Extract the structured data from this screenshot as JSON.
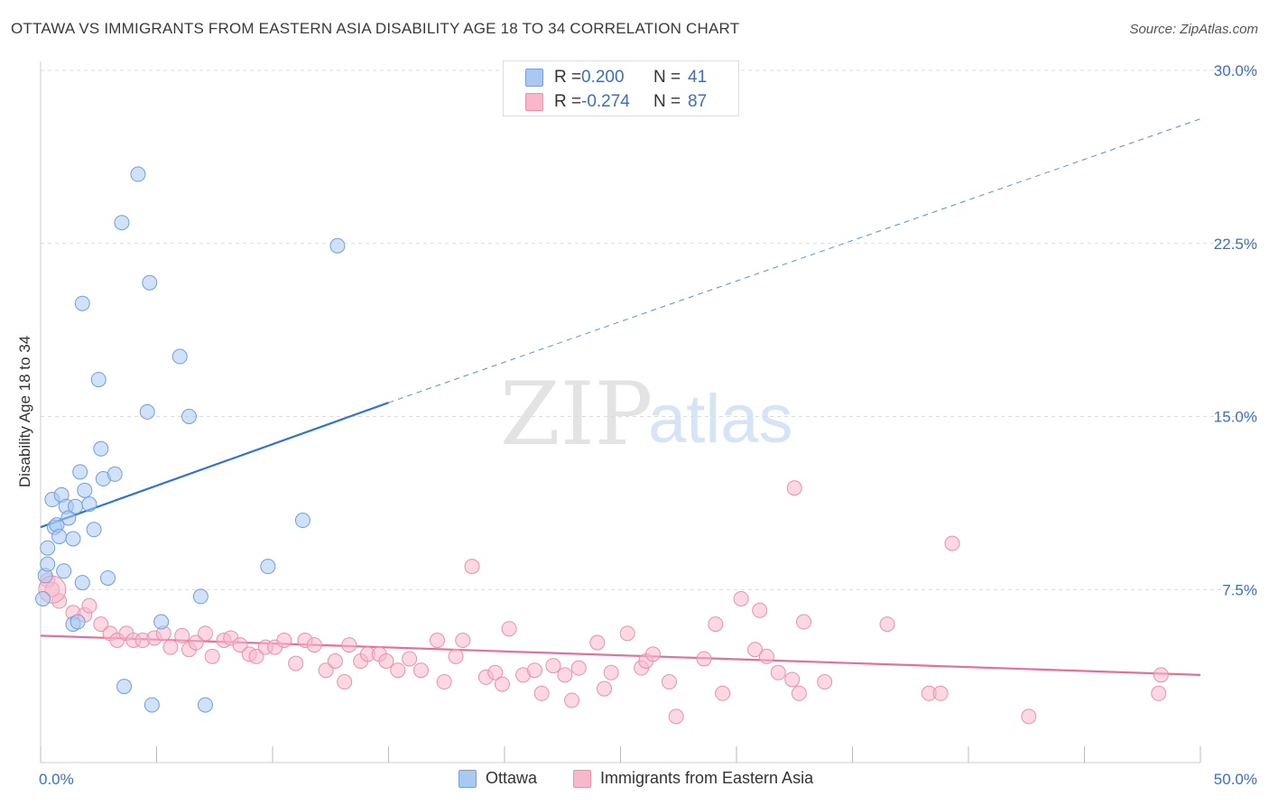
{
  "title": "OTTAWA VS IMMIGRANTS FROM EASTERN ASIA DISABILITY AGE 18 TO 34 CORRELATION CHART",
  "source": "Source: ZipAtlas.com",
  "watermark": {
    "zip": "ZIP",
    "atlas": "atlas"
  },
  "colors": {
    "ottawa_fill": "#a9c8f2",
    "ottawa_stroke": "#6f9fe0",
    "ottawa_line": "#2f74d0",
    "immigrants_fill": "#f7b8cb",
    "immigrants_stroke": "#ee8fac",
    "immigrants_line": "#e56f9a",
    "axis_label": "#3a6fc4",
    "grid": "#dcdcdc"
  },
  "stats": [
    {
      "r_label": "R =",
      "r_value": "0.200",
      "n_label": "N =",
      "n_value": "41",
      "series": "ottawa"
    },
    {
      "r_label": "R =",
      "r_value": "-0.274",
      "n_label": "N =",
      "n_value": "87",
      "series": "immigrants"
    }
  ],
  "legend": [
    {
      "label": "Ottawa",
      "series": "ottawa"
    },
    {
      "label": "Immigrants from Eastern Asia",
      "series": "immigrants"
    }
  ],
  "chart_data": {
    "type": "scatter",
    "title": "OTTAWA VS IMMIGRANTS FROM EASTERN ASIA DISABILITY AGE 18 TO 34 CORRELATION CHART",
    "xlabel": "",
    "ylabel": "Disability Age 18 to 34",
    "xlim": [
      0,
      50
    ],
    "ylim": [
      0,
      30
    ],
    "x_tick_labels": [
      "0.0%",
      "50.0%"
    ],
    "y_ticks": [
      7.5,
      15.0,
      22.5,
      30.0
    ],
    "y_tick_labels": [
      "7.5%",
      "15.0%",
      "22.5%",
      "30.0%"
    ],
    "grid": "horizontal dashed",
    "legend_position": "bottom",
    "series": [
      {
        "name": "Ottawa",
        "key": "ottawa",
        "r": 0.2,
        "n": 41,
        "trend": {
          "x": [
            0,
            15
          ],
          "y": [
            10.2,
            15.6
          ],
          "dashed_extension": {
            "x": [
              15,
              50
            ],
            "y": [
              15.6,
              27.9
            ]
          }
        },
        "points": [
          [
            0.1,
            7.1
          ],
          [
            0.2,
            8.1
          ],
          [
            0.3,
            9.3
          ],
          [
            0.3,
            8.6
          ],
          [
            0.5,
            11.4
          ],
          [
            0.6,
            10.2
          ],
          [
            0.7,
            10.3
          ],
          [
            0.8,
            9.8
          ],
          [
            0.9,
            11.6
          ],
          [
            1.0,
            8.3
          ],
          [
            1.1,
            11.1
          ],
          [
            1.2,
            10.6
          ],
          [
            1.4,
            9.7
          ],
          [
            1.4,
            6.0
          ],
          [
            1.5,
            11.1
          ],
          [
            1.6,
            6.1
          ],
          [
            1.7,
            12.6
          ],
          [
            1.8,
            19.9
          ],
          [
            1.8,
            7.8
          ],
          [
            1.9,
            11.8
          ],
          [
            2.1,
            11.2
          ],
          [
            2.3,
            10.1
          ],
          [
            2.5,
            16.6
          ],
          [
            2.6,
            13.6
          ],
          [
            2.7,
            12.3
          ],
          [
            2.9,
            8.0
          ],
          [
            3.2,
            12.5
          ],
          [
            3.5,
            23.4
          ],
          [
            3.6,
            3.3
          ],
          [
            4.2,
            25.5
          ],
          [
            4.6,
            15.2
          ],
          [
            4.7,
            20.8
          ],
          [
            4.8,
            2.5
          ],
          [
            5.2,
            6.1
          ],
          [
            6.0,
            17.6
          ],
          [
            6.4,
            15.0
          ],
          [
            6.9,
            7.2
          ],
          [
            7.1,
            2.5
          ],
          [
            9.8,
            8.5
          ],
          [
            11.3,
            10.5
          ],
          [
            12.8,
            22.4
          ]
        ]
      },
      {
        "name": "Immigrants from Eastern Asia",
        "key": "immigrants",
        "r": -0.274,
        "n": 87,
        "trend": {
          "x": [
            0,
            50
          ],
          "y": [
            5.5,
            3.8
          ]
        },
        "points": [
          [
            0.3,
            7.9
          ],
          [
            0.5,
            7.5
          ],
          [
            0.8,
            7.0
          ],
          [
            1.4,
            6.5
          ],
          [
            1.9,
            6.4
          ],
          [
            2.1,
            6.8
          ],
          [
            2.6,
            6.0
          ],
          [
            3.0,
            5.6
          ],
          [
            3.3,
            5.3
          ],
          [
            3.7,
            5.6
          ],
          [
            4.0,
            5.3
          ],
          [
            4.4,
            5.3
          ],
          [
            4.9,
            5.4
          ],
          [
            5.3,
            5.6
          ],
          [
            5.6,
            5.0
          ],
          [
            6.1,
            5.5
          ],
          [
            6.4,
            4.9
          ],
          [
            6.7,
            5.2
          ],
          [
            7.1,
            5.6
          ],
          [
            7.4,
            4.6
          ],
          [
            7.9,
            5.3
          ],
          [
            8.2,
            5.4
          ],
          [
            8.6,
            5.1
          ],
          [
            9.0,
            4.7
          ],
          [
            9.3,
            4.6
          ],
          [
            9.7,
            5.0
          ],
          [
            10.1,
            5.0
          ],
          [
            10.5,
            5.3
          ],
          [
            11.0,
            4.3
          ],
          [
            11.4,
            5.3
          ],
          [
            11.8,
            5.1
          ],
          [
            12.3,
            4.0
          ],
          [
            12.7,
            4.4
          ],
          [
            13.1,
            3.5
          ],
          [
            13.3,
            5.1
          ],
          [
            13.8,
            4.4
          ],
          [
            14.1,
            4.7
          ],
          [
            14.6,
            4.7
          ],
          [
            14.9,
            4.4
          ],
          [
            15.4,
            4.0
          ],
          [
            15.9,
            4.5
          ],
          [
            16.4,
            4.0
          ],
          [
            17.1,
            5.3
          ],
          [
            17.4,
            3.5
          ],
          [
            17.9,
            4.6
          ],
          [
            18.2,
            5.3
          ],
          [
            18.6,
            8.5
          ],
          [
            19.2,
            3.7
          ],
          [
            19.6,
            3.9
          ],
          [
            19.9,
            3.4
          ],
          [
            20.2,
            5.8
          ],
          [
            20.8,
            3.8
          ],
          [
            21.3,
            4.0
          ],
          [
            21.6,
            3.0
          ],
          [
            22.1,
            4.2
          ],
          [
            22.6,
            3.8
          ],
          [
            22.9,
            2.7
          ],
          [
            23.2,
            4.1
          ],
          [
            24.0,
            5.2
          ],
          [
            24.3,
            3.2
          ],
          [
            24.6,
            3.9
          ],
          [
            25.3,
            5.6
          ],
          [
            25.9,
            4.1
          ],
          [
            26.1,
            4.4
          ],
          [
            26.4,
            4.7
          ],
          [
            27.1,
            3.5
          ],
          [
            27.4,
            2.0
          ],
          [
            28.6,
            4.5
          ],
          [
            29.1,
            6.0
          ],
          [
            29.4,
            3.0
          ],
          [
            30.2,
            7.1
          ],
          [
            30.8,
            4.9
          ],
          [
            31.0,
            6.6
          ],
          [
            31.3,
            4.6
          ],
          [
            31.8,
            3.9
          ],
          [
            32.4,
            3.6
          ],
          [
            32.7,
            3.0
          ],
          [
            32.9,
            6.1
          ],
          [
            32.5,
            11.9
          ],
          [
            33.8,
            3.5
          ],
          [
            36.5,
            6.0
          ],
          [
            38.3,
            3.0
          ],
          [
            38.8,
            3.0
          ],
          [
            39.3,
            9.5
          ],
          [
            42.6,
            2.0
          ],
          [
            48.2,
            3.0
          ],
          [
            48.3,
            3.8
          ]
        ]
      }
    ]
  }
}
